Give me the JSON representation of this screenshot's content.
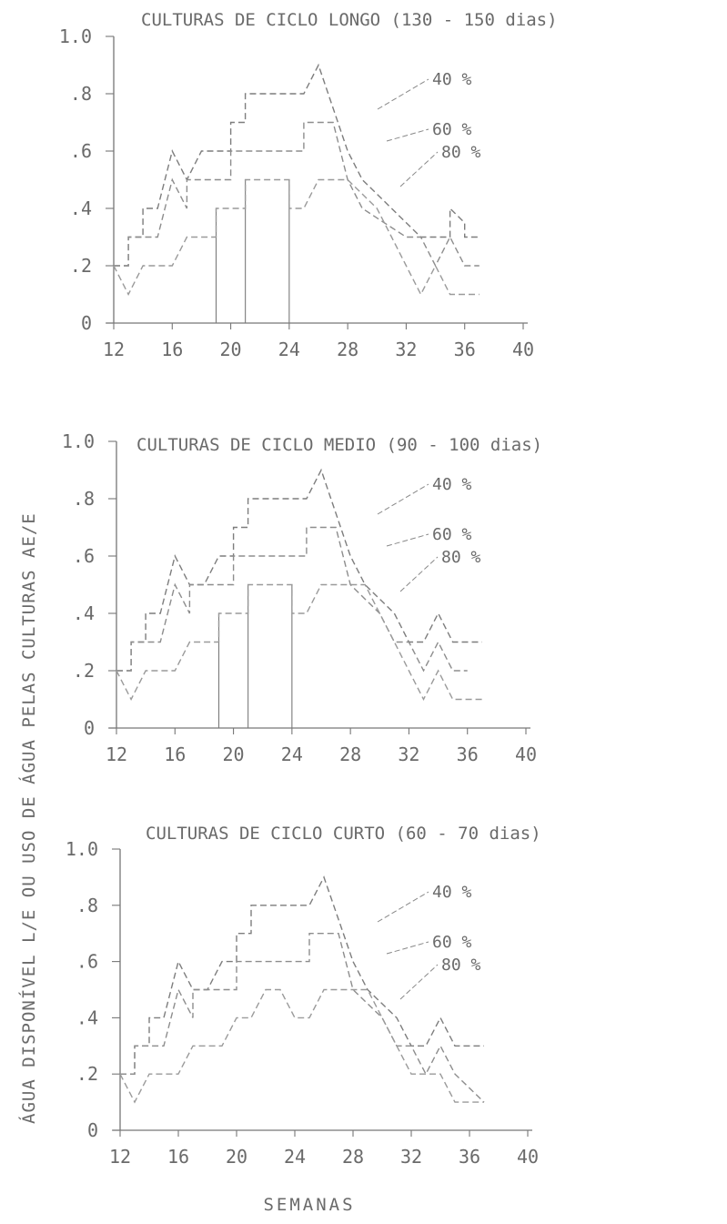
{
  "figure": {
    "ylabel": "ÁGUA DISPONÍVEL L/E OU USO DE ÁGUA PELAS CULTURAS AE/E",
    "xlabel": "SEMANAS"
  },
  "chart_data": [
    {
      "type": "line",
      "title": "CULTURAS DE CICLO LONGO (130 - 150 dias)",
      "xlim": [
        12,
        40
      ],
      "ylim": [
        0,
        1.0
      ],
      "x_ticks": [
        "12",
        "16",
        "20",
        "24",
        "28",
        "32",
        "36",
        "40"
      ],
      "y_ticks": [
        "0",
        ".2",
        ".4",
        ".6",
        ".8",
        "1.0"
      ],
      "series": [
        {
          "name": "40 %",
          "color": "#7d7d7d",
          "x": [
            12,
            13,
            13,
            14,
            14,
            15,
            16,
            17,
            17,
            18,
            20,
            20,
            21,
            21,
            22,
            22,
            25,
            25,
            26,
            28,
            29,
            33,
            34,
            34,
            35,
            35,
            36,
            36,
            37
          ],
          "y": [
            0.2,
            0.2,
            0.3,
            0.3,
            0.4,
            0.4,
            0.6,
            0.5,
            0.5,
            0.6,
            0.6,
            0.7,
            0.7,
            0.8,
            0.8,
            0.8,
            0.8,
            0.8,
            0.9,
            0.6,
            0.5,
            0.3,
            0.3,
            0.3,
            0.3,
            0.4,
            0.35,
            0.3,
            0.3
          ]
        },
        {
          "name": "60 %",
          "color": "#8d8d8d",
          "x": [
            12,
            13,
            13,
            14,
            14,
            15,
            16,
            17,
            17,
            18,
            19,
            20,
            20,
            21,
            21,
            24,
            24,
            25,
            25,
            26,
            27,
            28,
            29,
            32,
            33,
            34,
            35,
            36,
            37
          ],
          "y": [
            0.2,
            0.2,
            0.3,
            0.3,
            0.3,
            0.3,
            0.5,
            0.4,
            0.5,
            0.5,
            0.5,
            0.5,
            0.6,
            0.6,
            0.6,
            0.6,
            0.6,
            0.6,
            0.7,
            0.7,
            0.7,
            0.5,
            0.4,
            0.3,
            0.3,
            0.2,
            0.3,
            0.2,
            0.2
          ]
        },
        {
          "name": "80 %",
          "color": "#9a9a9a",
          "x": [
            12,
            13,
            14,
            14,
            15,
            16,
            17,
            17,
            18,
            19,
            19,
            20,
            21,
            21,
            24,
            24,
            25,
            26,
            27,
            28,
            30,
            31,
            31,
            32,
            33,
            34,
            35,
            36,
            37
          ],
          "y": [
            0.2,
            0.1,
            0.2,
            0.2,
            0.2,
            0.2,
            0.3,
            0.3,
            0.3,
            0.3,
            0.4,
            0.4,
            0.4,
            0.5,
            0.5,
            0.4,
            0.4,
            0.5,
            0.5,
            0.5,
            0.4,
            0.3,
            0.3,
            0.2,
            0.1,
            0.2,
            0.1,
            0.1,
            0.1
          ]
        }
      ],
      "annotations": [
        "40 %",
        "60 %",
        "80 %"
      ]
    },
    {
      "type": "line",
      "title": "CULTURAS DE CICLO MEDIO (90 - 100 dias)",
      "xlim": [
        12,
        40
      ],
      "ylim": [
        0,
        1.0
      ],
      "x_ticks": [
        "12",
        "16",
        "20",
        "24",
        "28",
        "32",
        "36",
        "40"
      ],
      "y_ticks": [
        "0",
        ".2",
        ".4",
        ".6",
        ".8",
        "1.0"
      ],
      "series": [
        {
          "name": "40 %",
          "color": "#7d7d7d",
          "x": [
            12,
            13,
            13,
            14,
            14,
            15,
            16,
            17,
            17,
            18,
            19,
            20,
            20,
            21,
            21,
            22,
            22,
            25,
            25,
            26,
            28,
            29,
            31,
            32,
            33,
            34,
            35,
            36,
            37
          ],
          "y": [
            0.2,
            0.2,
            0.3,
            0.3,
            0.4,
            0.4,
            0.6,
            0.5,
            0.5,
            0.5,
            0.6,
            0.6,
            0.7,
            0.7,
            0.8,
            0.8,
            0.8,
            0.8,
            0.8,
            0.9,
            0.6,
            0.5,
            0.4,
            0.3,
            0.3,
            0.4,
            0.3,
            0.3,
            0.3
          ]
        },
        {
          "name": "60 %",
          "color": "#8d8d8d",
          "x": [
            12,
            13,
            13,
            14,
            14,
            15,
            16,
            17,
            17,
            18,
            19,
            20,
            20,
            21,
            21,
            24,
            24,
            25,
            25,
            26,
            27,
            28,
            30,
            31,
            32,
            33,
            34,
            35,
            36
          ],
          "y": [
            0.2,
            0.2,
            0.3,
            0.3,
            0.3,
            0.3,
            0.5,
            0.4,
            0.5,
            0.5,
            0.5,
            0.5,
            0.6,
            0.6,
            0.6,
            0.6,
            0.6,
            0.6,
            0.7,
            0.7,
            0.7,
            0.5,
            0.4,
            0.3,
            0.3,
            0.2,
            0.3,
            0.2,
            0.2
          ]
        },
        {
          "name": "80 %",
          "color": "#9a9a9a",
          "x": [
            12,
            13,
            14,
            14,
            15,
            16,
            17,
            17,
            18,
            19,
            19,
            20,
            21,
            21,
            24,
            24,
            25,
            26,
            27,
            28,
            29,
            30,
            31,
            32,
            33,
            34,
            35,
            36,
            37
          ],
          "y": [
            0.2,
            0.1,
            0.2,
            0.2,
            0.2,
            0.2,
            0.3,
            0.3,
            0.3,
            0.3,
            0.4,
            0.4,
            0.4,
            0.5,
            0.5,
            0.4,
            0.4,
            0.5,
            0.5,
            0.5,
            0.5,
            0.4,
            0.3,
            0.2,
            0.1,
            0.2,
            0.1,
            0.1,
            0.1
          ]
        }
      ],
      "annotations": [
        "40 %",
        "60 %",
        "80 %"
      ]
    },
    {
      "type": "line",
      "title": "CULTURAS DE CICLO CURTO (60 - 70 dias)",
      "xlim": [
        12,
        40
      ],
      "ylim": [
        0,
        1.0
      ],
      "x_ticks": [
        "12",
        "16",
        "20",
        "24",
        "28",
        "32",
        "36",
        "40"
      ],
      "y_ticks": [
        "0",
        ".2",
        ".4",
        ".6",
        ".8",
        "1.0"
      ],
      "series": [
        {
          "name": "40 %",
          "color": "#7d7d7d",
          "x": [
            12,
            13,
            13,
            14,
            14,
            15,
            16,
            17,
            17,
            18,
            19,
            20,
            20,
            21,
            21,
            22,
            22,
            25,
            25,
            26,
            28,
            29,
            31,
            32,
            33,
            34,
            35,
            36,
            37
          ],
          "y": [
            0.2,
            0.2,
            0.3,
            0.3,
            0.4,
            0.4,
            0.6,
            0.5,
            0.5,
            0.5,
            0.6,
            0.6,
            0.7,
            0.7,
            0.8,
            0.8,
            0.8,
            0.8,
            0.8,
            0.9,
            0.6,
            0.5,
            0.4,
            0.3,
            0.3,
            0.4,
            0.3,
            0.3,
            0.3
          ]
        },
        {
          "name": "60 %",
          "color": "#8d8d8d",
          "x": [
            12,
            13,
            13,
            14,
            14,
            15,
            16,
            17,
            17,
            18,
            19,
            20,
            20,
            21,
            21,
            24,
            24,
            25,
            25,
            26,
            27,
            28,
            30,
            31,
            32,
            33,
            34,
            35,
            37
          ],
          "y": [
            0.2,
            0.2,
            0.3,
            0.3,
            0.3,
            0.3,
            0.5,
            0.4,
            0.5,
            0.5,
            0.5,
            0.5,
            0.6,
            0.6,
            0.6,
            0.6,
            0.6,
            0.6,
            0.7,
            0.7,
            0.7,
            0.5,
            0.4,
            0.3,
            0.3,
            0.2,
            0.3,
            0.2,
            0.1
          ]
        },
        {
          "name": "80 %",
          "color": "#9a9a9a",
          "x": [
            12,
            13,
            14,
            14,
            15,
            16,
            17,
            17,
            18,
            19,
            19,
            20,
            21,
            21,
            22,
            23,
            24,
            25,
            26,
            28,
            29,
            30,
            31,
            32,
            33,
            34,
            35,
            36,
            37
          ],
          "y": [
            0.2,
            0.1,
            0.2,
            0.2,
            0.2,
            0.2,
            0.3,
            0.3,
            0.3,
            0.3,
            0.3,
            0.4,
            0.4,
            0.4,
            0.5,
            0.5,
            0.4,
            0.4,
            0.5,
            0.5,
            0.5,
            0.4,
            0.3,
            0.2,
            0.2,
            0.2,
            0.1,
            0.1,
            0.1
          ]
        }
      ],
      "annotations": [
        "40 %",
        "60 %",
        "80 %"
      ]
    }
  ]
}
